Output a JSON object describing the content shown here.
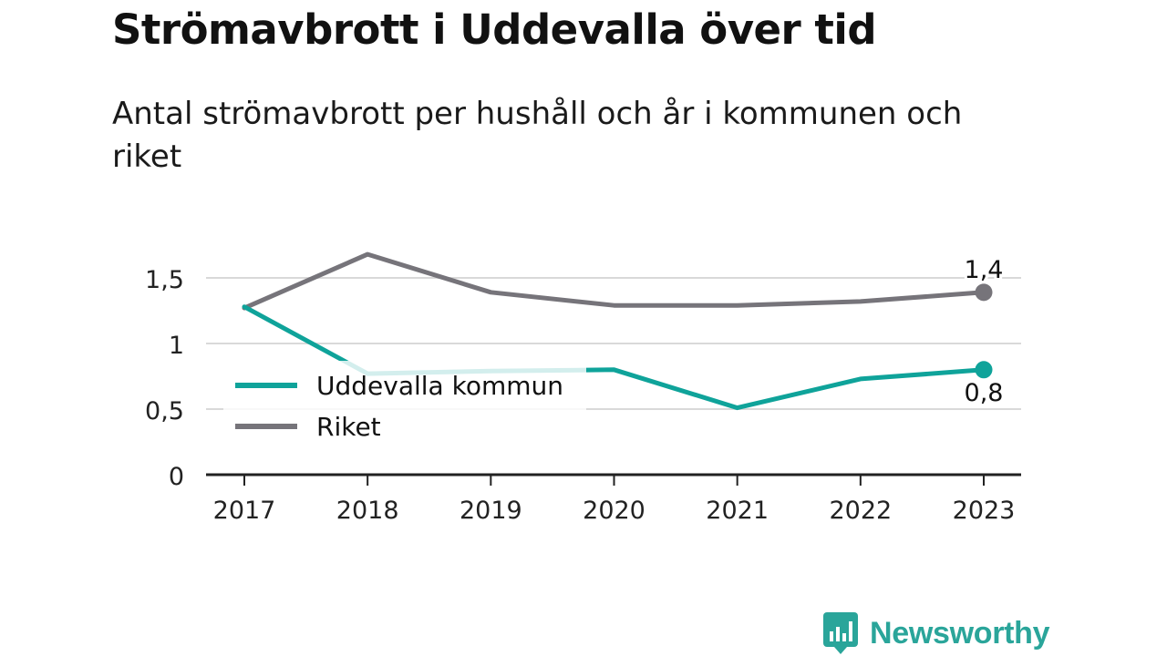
{
  "header": {
    "title": "Strömavbrott i Uddevalla över tid",
    "subtitle": "Antal strömavbrott per hushåll och år i kommunen och riket"
  },
  "brand": {
    "name": "Newsworthy",
    "icon": "newsworthy-bar-chart-icon",
    "color": "#2aa59a"
  },
  "chart_data": {
    "type": "line",
    "title": "Strömavbrott i Uddevalla över tid",
    "subtitle": "Antal strömavbrott per hushåll och år i kommunen och riket",
    "x": [
      "2017",
      "2018",
      "2019",
      "2020",
      "2021",
      "2022",
      "2023"
    ],
    "ylim": [
      0,
      1.7
    ],
    "yticks": [
      0,
      0.5,
      1,
      1.5
    ],
    "ytick_labels": [
      "0",
      "0,5",
      "1",
      "1,5"
    ],
    "grid": true,
    "legend_position": "left",
    "series": [
      {
        "name": "Uddevalla kommun",
        "color": "#0fa39a",
        "values": [
          1.28,
          0.77,
          0.79,
          0.8,
          0.51,
          0.73,
          0.8
        ],
        "end_label": "0,8"
      },
      {
        "name": "Riket",
        "color": "#76747a",
        "values": [
          1.27,
          1.68,
          1.39,
          1.29,
          1.29,
          1.32,
          1.39
        ],
        "end_label": "1,4"
      }
    ]
  }
}
